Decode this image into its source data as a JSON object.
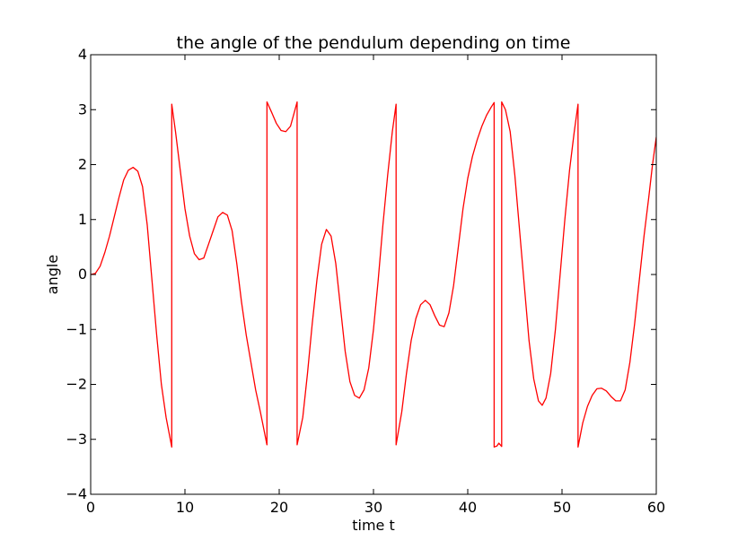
{
  "chart_data": {
    "type": "line",
    "title": "the angle of the pendulum depending on time",
    "xlabel": "time t",
    "ylabel": "angle",
    "xlim": [
      0,
      60
    ],
    "ylim": [
      -4,
      4
    ],
    "xticks": [
      0,
      10,
      20,
      30,
      40,
      50,
      60
    ],
    "xtick_labels": [
      "0",
      "10",
      "20",
      "30",
      "40",
      "50",
      "60"
    ],
    "yticks": [
      -4,
      -3,
      -2,
      -1,
      0,
      1,
      2,
      3,
      4
    ],
    "ytick_labels": [
      "−4",
      "−3",
      "−2",
      "−1",
      "0",
      "1",
      "2",
      "3",
      "4"
    ],
    "grid": false,
    "line_color": "#ff0000",
    "series": [
      {
        "points": [
          [
            0,
            0.0
          ],
          [
            0.5,
            0.02
          ],
          [
            1,
            0.15
          ],
          [
            1.5,
            0.4
          ],
          [
            2,
            0.7
          ],
          [
            2.5,
            1.05
          ],
          [
            3,
            1.4
          ],
          [
            3.5,
            1.72
          ],
          [
            4,
            1.9
          ],
          [
            4.5,
            1.95
          ],
          [
            5,
            1.88
          ],
          [
            5.5,
            1.6
          ],
          [
            6,
            0.9
          ],
          [
            6.5,
            -0.1
          ],
          [
            7,
            -1.1
          ],
          [
            7.5,
            -2.0
          ],
          [
            8,
            -2.6
          ],
          [
            8.6,
            -3.14
          ],
          [
            8.6,
            3.1
          ],
          [
            9,
            2.6
          ],
          [
            9.5,
            1.9
          ],
          [
            10,
            1.2
          ],
          [
            10.5,
            0.7
          ],
          [
            11,
            0.38
          ],
          [
            11.5,
            0.27
          ],
          [
            12,
            0.3
          ],
          [
            12.5,
            0.55
          ],
          [
            13,
            0.8
          ],
          [
            13.5,
            1.05
          ],
          [
            14,
            1.13
          ],
          [
            14.5,
            1.08
          ],
          [
            15,
            0.8
          ],
          [
            15.5,
            0.2
          ],
          [
            16,
            -0.5
          ],
          [
            16.5,
            -1.1
          ],
          [
            17,
            -1.6
          ],
          [
            17.5,
            -2.1
          ],
          [
            18,
            -2.5
          ],
          [
            18.7,
            -3.1
          ],
          [
            18.7,
            3.14
          ],
          [
            19.2,
            2.95
          ],
          [
            19.7,
            2.75
          ],
          [
            20.2,
            2.62
          ],
          [
            20.7,
            2.6
          ],
          [
            21.2,
            2.7
          ],
          [
            21.6,
            2.95
          ],
          [
            21.9,
            3.14
          ],
          [
            21.9,
            -3.1
          ],
          [
            22.5,
            -2.6
          ],
          [
            23,
            -1.8
          ],
          [
            23.5,
            -0.9
          ],
          [
            24,
            -0.1
          ],
          [
            24.5,
            0.55
          ],
          [
            25,
            0.82
          ],
          [
            25.5,
            0.7
          ],
          [
            26,
            0.2
          ],
          [
            26.5,
            -0.6
          ],
          [
            27,
            -1.4
          ],
          [
            27.5,
            -1.95
          ],
          [
            28,
            -2.2
          ],
          [
            28.5,
            -2.25
          ],
          [
            29,
            -2.1
          ],
          [
            29.5,
            -1.7
          ],
          [
            30,
            -1.0
          ],
          [
            30.5,
            -0.1
          ],
          [
            31,
            0.9
          ],
          [
            31.5,
            1.8
          ],
          [
            32,
            2.6
          ],
          [
            32.4,
            3.1
          ],
          [
            32.4,
            -3.1
          ],
          [
            33,
            -2.5
          ],
          [
            33.5,
            -1.8
          ],
          [
            34,
            -1.2
          ],
          [
            34.5,
            -0.8
          ],
          [
            35,
            -0.55
          ],
          [
            35.5,
            -0.47
          ],
          [
            36,
            -0.55
          ],
          [
            36.5,
            -0.75
          ],
          [
            37,
            -0.92
          ],
          [
            37.5,
            -0.95
          ],
          [
            38,
            -0.7
          ],
          [
            38.5,
            -0.2
          ],
          [
            39,
            0.5
          ],
          [
            39.5,
            1.2
          ],
          [
            40,
            1.75
          ],
          [
            40.5,
            2.15
          ],
          [
            41,
            2.45
          ],
          [
            41.5,
            2.7
          ],
          [
            42,
            2.9
          ],
          [
            42.5,
            3.05
          ],
          [
            42.8,
            3.13
          ],
          [
            42.8,
            -3.14
          ],
          [
            43.1,
            -3.12
          ],
          [
            43.3,
            -3.07
          ],
          [
            43.6,
            -3.13
          ],
          [
            43.6,
            3.14
          ],
          [
            44,
            3.0
          ],
          [
            44.5,
            2.6
          ],
          [
            45,
            1.8
          ],
          [
            45.5,
            0.8
          ],
          [
            46,
            -0.2
          ],
          [
            46.5,
            -1.2
          ],
          [
            47,
            -1.9
          ],
          [
            47.5,
            -2.3
          ],
          [
            47.9,
            -2.38
          ],
          [
            48.3,
            -2.25
          ],
          [
            48.8,
            -1.8
          ],
          [
            49.3,
            -1.0
          ],
          [
            49.8,
            0.0
          ],
          [
            50.3,
            1.0
          ],
          [
            50.8,
            1.9
          ],
          [
            51.3,
            2.6
          ],
          [
            51.7,
            3.1
          ],
          [
            51.7,
            -3.14
          ],
          [
            52.2,
            -2.7
          ],
          [
            52.7,
            -2.4
          ],
          [
            53.2,
            -2.2
          ],
          [
            53.7,
            -2.08
          ],
          [
            54.2,
            -2.07
          ],
          [
            54.7,
            -2.12
          ],
          [
            55.2,
            -2.22
          ],
          [
            55.7,
            -2.3
          ],
          [
            56.2,
            -2.3
          ],
          [
            56.7,
            -2.1
          ],
          [
            57.2,
            -1.6
          ],
          [
            57.7,
            -0.9
          ],
          [
            58.2,
            -0.1
          ],
          [
            58.7,
            0.7
          ],
          [
            59.2,
            1.4
          ],
          [
            59.6,
            2.0
          ],
          [
            60,
            2.5
          ]
        ]
      }
    ]
  }
}
